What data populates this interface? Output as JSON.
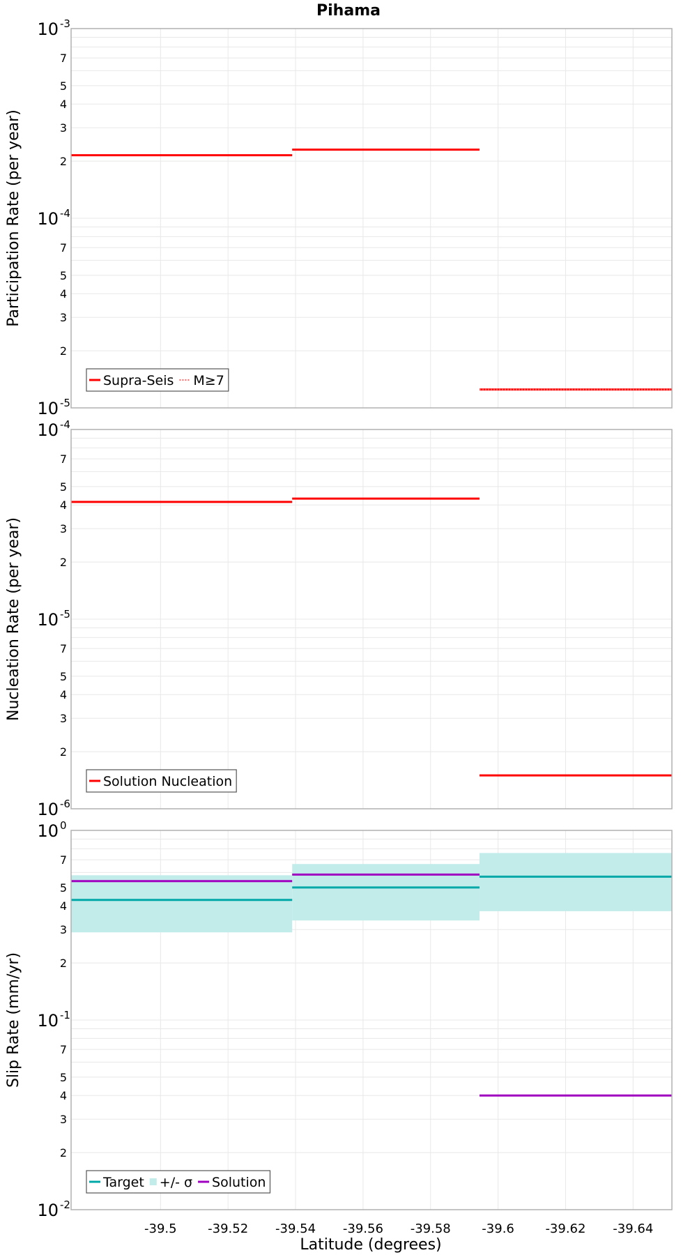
{
  "title": "Pihama",
  "xlabel": "Latitude (degrees)",
  "x_ticks": [
    "-39.5",
    "-39.52",
    "-39.54",
    "-39.56",
    "-39.58",
    "-39.6",
    "-39.62",
    "-39.64"
  ],
  "x_tick_values": [
    -39.5,
    -39.52,
    -39.54,
    -39.56,
    -39.58,
    -39.6,
    -39.62,
    -39.64
  ],
  "xlim": [
    -39.4735,
    -39.6515
  ],
  "colors": {
    "red": "#ff0000",
    "teal": "#00a8a8",
    "band": "#c2ecea",
    "purple": "#a000c0",
    "grid": "#e8e8e8",
    "frame": "#b0b0b0"
  },
  "chart_data": [
    {
      "type": "line",
      "step": true,
      "ylabel": "Participation Rate (per year)",
      "yscale": "log",
      "ylim": [
        1e-05,
        0.001
      ],
      "y_major_ticks": [
        {
          "base": "10",
          "exp": "-3"
        },
        {
          "base": "10",
          "exp": "-4"
        },
        {
          "base": "10",
          "exp": "-5"
        }
      ],
      "legend": {
        "placement": "bottom-left",
        "entries": [
          "Supra-Seis",
          "M≥7"
        ]
      },
      "series": [
        {
          "name": "Supra-Seis",
          "style": "solid",
          "color": "#ff0000",
          "segments": [
            {
              "x": [
                -39.4735,
                -39.539
              ],
              "y": 0.000215
            },
            {
              "x": [
                -39.539,
                -39.5945
              ],
              "y": 0.00023
            },
            {
              "x": [
                -39.5945,
                -39.6515
              ],
              "y": 1.25e-05
            }
          ]
        },
        {
          "name": "M≥7",
          "style": "dotted",
          "color": "#ff0000",
          "segments": [
            {
              "x": [
                -39.5945,
                -39.6515
              ],
              "y": 1.25e-05
            }
          ]
        }
      ]
    },
    {
      "type": "line",
      "step": true,
      "ylabel": "Nucleation Rate (per year)",
      "yscale": "log",
      "ylim": [
        1e-06,
        0.0001
      ],
      "y_major_ticks": [
        {
          "base": "10",
          "exp": "-4"
        },
        {
          "base": "10",
          "exp": "-5"
        },
        {
          "base": "10",
          "exp": "-6"
        }
      ],
      "legend": {
        "placement": "bottom-left",
        "entries": [
          "Solution Nucleation"
        ]
      },
      "series": [
        {
          "name": "Solution Nucleation",
          "style": "solid",
          "color": "#ff0000",
          "segments": [
            {
              "x": [
                -39.4735,
                -39.539
              ],
              "y": 4.15e-05
            },
            {
              "x": [
                -39.539,
                -39.5945
              ],
              "y": 4.32e-05
            },
            {
              "x": [
                -39.5945,
                -39.6515
              ],
              "y": 1.5e-06
            }
          ]
        }
      ]
    },
    {
      "type": "line",
      "step": true,
      "ylabel": "Slip Rate (mm/yr)",
      "yscale": "log",
      "ylim": [
        0.01,
        1
      ],
      "y_major_ticks": [
        {
          "base": "10",
          "exp": "0"
        },
        {
          "base": "10",
          "exp": "-1"
        },
        {
          "base": "10",
          "exp": "-2"
        }
      ],
      "legend": {
        "placement": "bottom-left",
        "entries": [
          "Target",
          "+/- σ",
          "Solution"
        ]
      },
      "bands": [
        {
          "name": "+/- σ",
          "color": "#c2ecea",
          "segments": [
            {
              "x": [
                -39.4735,
                -39.539
              ],
              "low": 0.29,
              "high": 0.58
            },
            {
              "x": [
                -39.539,
                -39.5945
              ],
              "low": 0.335,
              "high": 0.665
            },
            {
              "x": [
                -39.5945,
                -39.6515
              ],
              "low": 0.375,
              "high": 0.76
            }
          ]
        }
      ],
      "series": [
        {
          "name": "Target",
          "style": "solid",
          "color": "#00a8a8",
          "segments": [
            {
              "x": [
                -39.4735,
                -39.539
              ],
              "y": 0.43
            },
            {
              "x": [
                -39.539,
                -39.5945
              ],
              "y": 0.5
            },
            {
              "x": [
                -39.5945,
                -39.6515
              ],
              "y": 0.57
            }
          ]
        },
        {
          "name": "Solution",
          "style": "solid",
          "color": "#a000c0",
          "segments": [
            {
              "x": [
                -39.4735,
                -39.539
              ],
              "y": 0.54
            },
            {
              "x": [
                -39.539,
                -39.5945
              ],
              "y": 0.585
            },
            {
              "x": [
                -39.5945,
                -39.6515
              ],
              "y": 0.04
            }
          ]
        }
      ]
    }
  ]
}
